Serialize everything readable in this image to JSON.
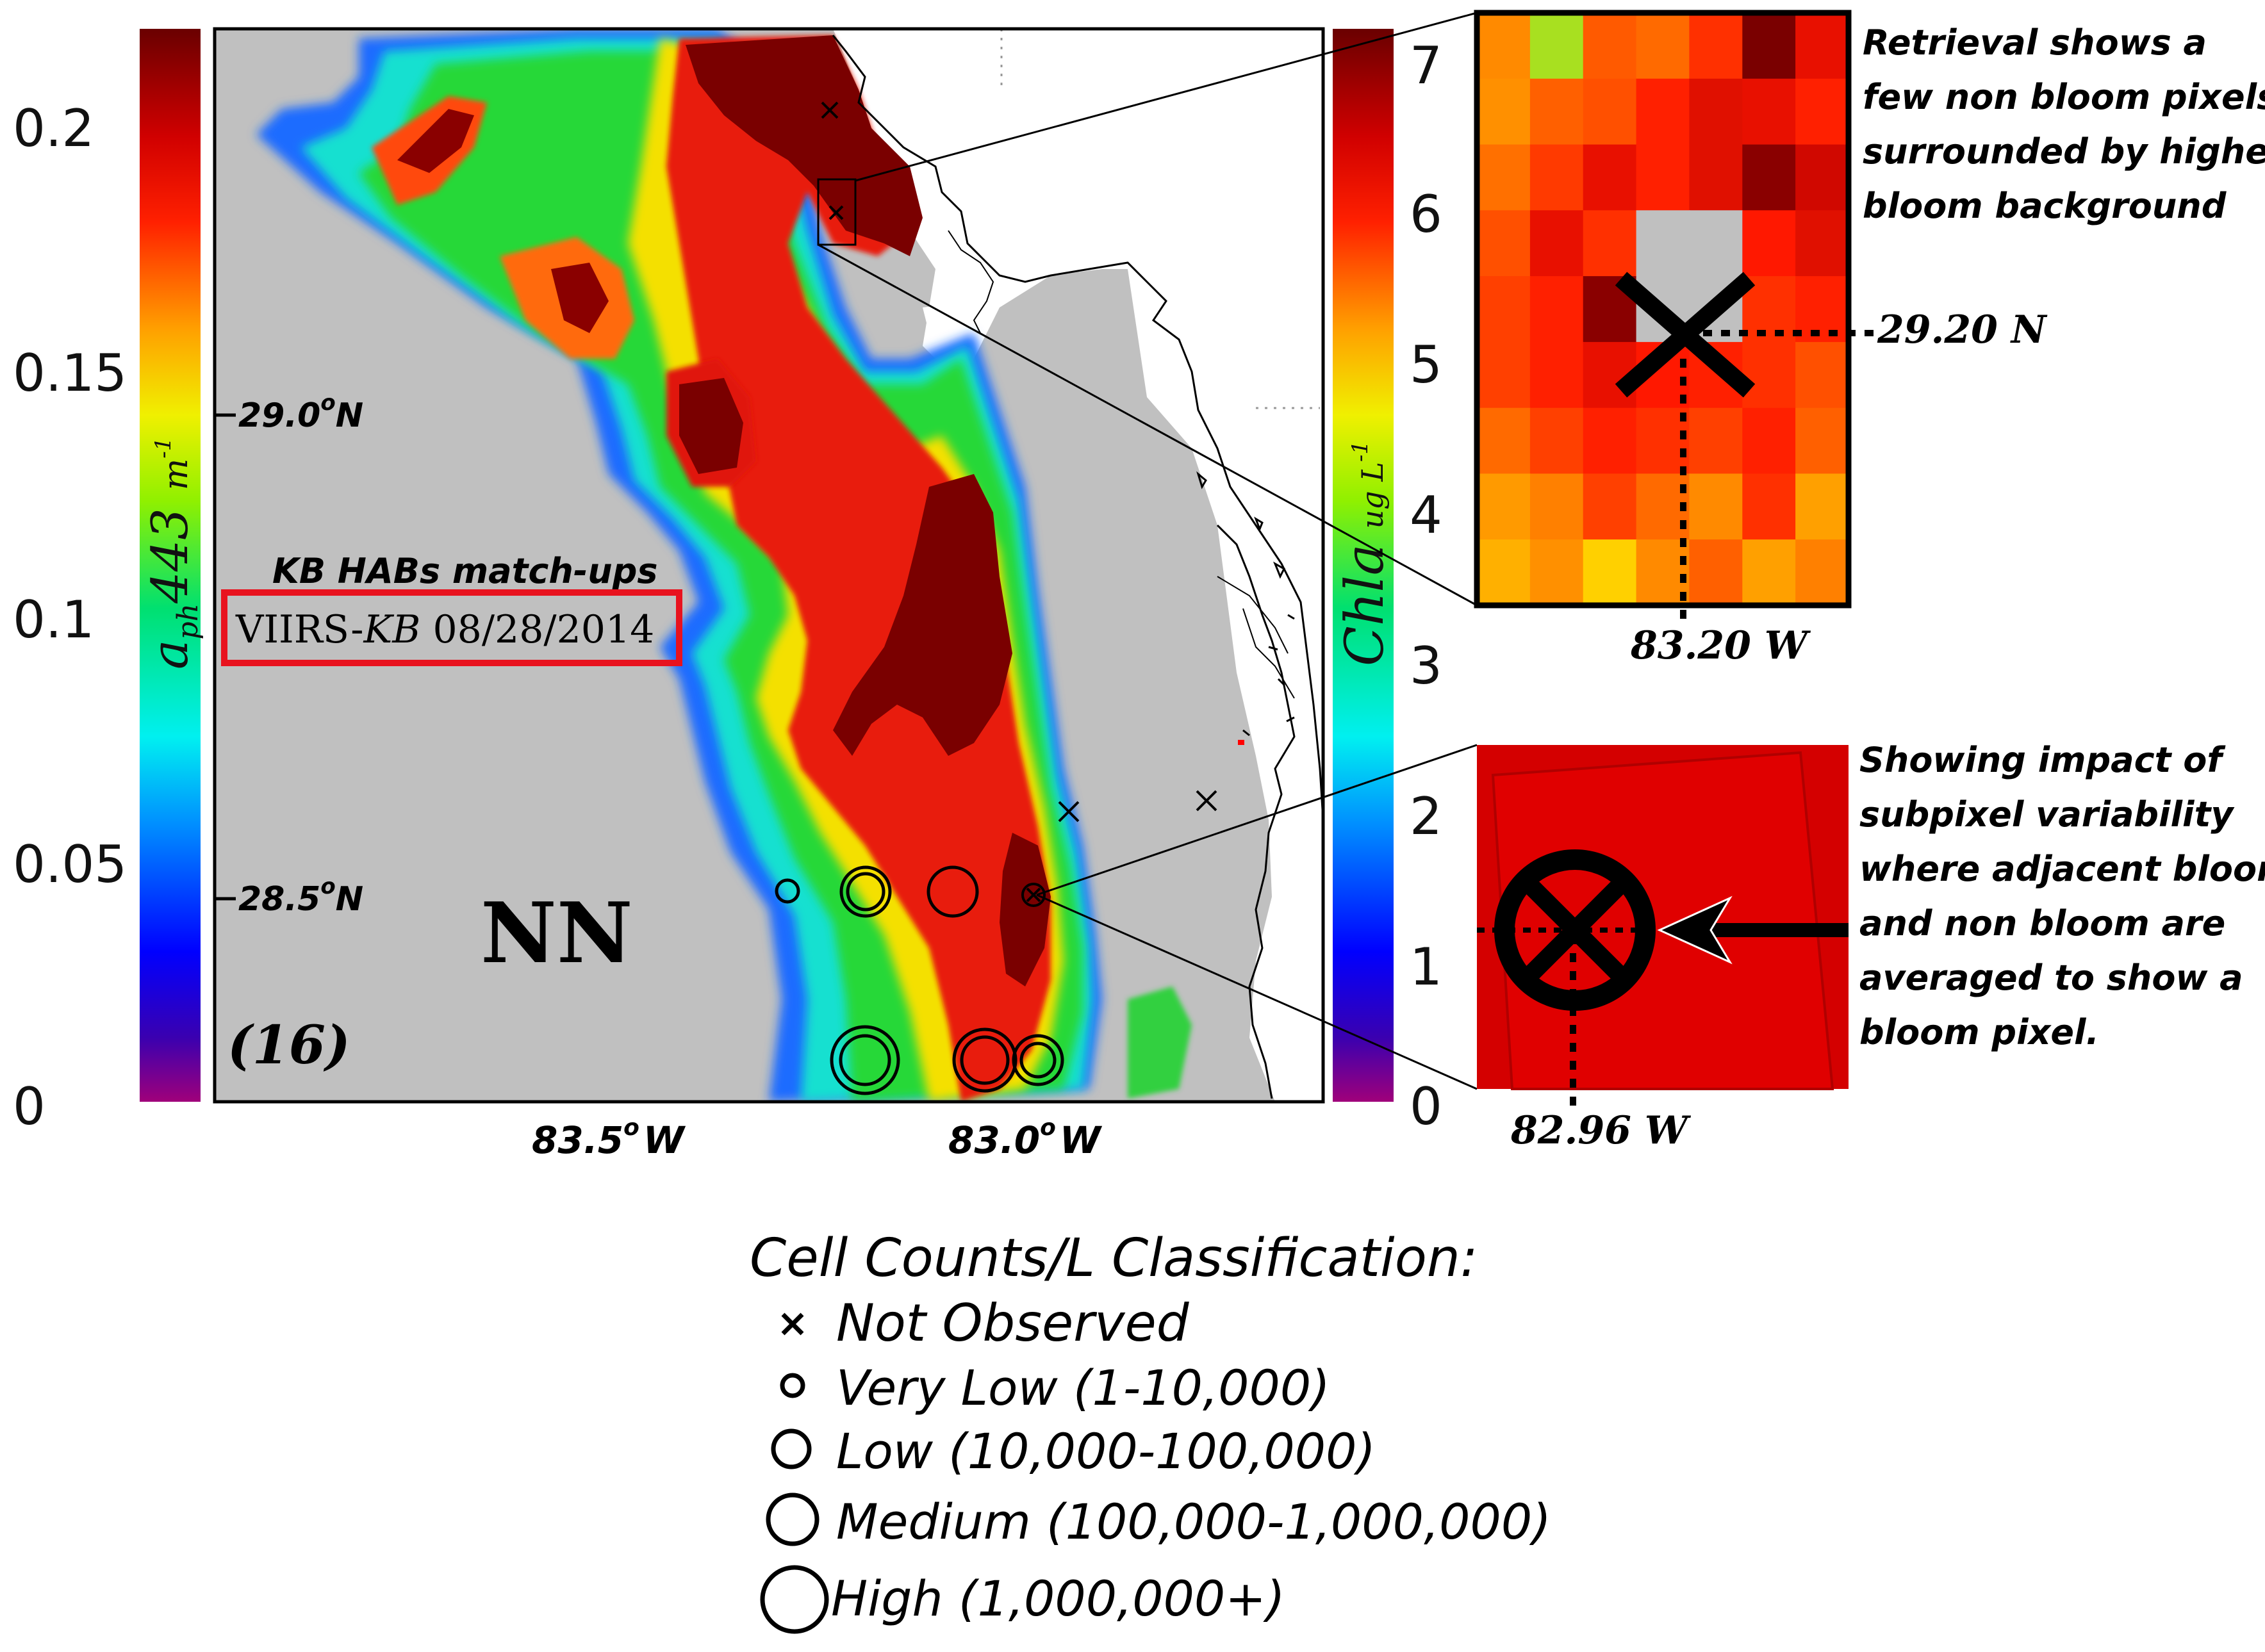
{
  "left_colorbar": {
    "label": "aph443 m-1",
    "label_main": "a",
    "label_sub": "ph",
    "label_num": "443",
    "label_unit": "m",
    "label_exp": "-1",
    "ticks": [
      "0.2",
      "0.15",
      "0.1",
      "0.05",
      "0"
    ],
    "range": [
      0,
      0.22
    ]
  },
  "right_colorbar": {
    "label": "Chla ug L-1",
    "label_main": "Chla",
    "label_unit": "ug L",
    "label_exp": "-1",
    "ticks": [
      "7",
      "6",
      "5",
      "4",
      "3",
      "2",
      "1",
      "0"
    ],
    "range": [
      0,
      7.4
    ]
  },
  "map": {
    "lat_labels": [
      {
        "text": "29.0",
        "deg": "o",
        "hemi": "N"
      },
      {
        "text": "28.5",
        "deg": "o",
        "hemi": "N"
      }
    ],
    "lon_labels": [
      {
        "text": "83.5",
        "deg": "o",
        "hemi": "W"
      },
      {
        "text": "83.0",
        "deg": "o",
        "hemi": "W"
      }
    ],
    "caption_line1": "KB HABs match-ups",
    "caption_box_prefix": "VIIRS-",
    "caption_box_italic": "KB",
    "caption_box_date": " 08/28/2014",
    "panel_code": "NN",
    "panel_number": "(16)",
    "colors": {
      "land": "#c0c0c0",
      "bloom_dark": "#7a0000",
      "caption_border": "#e8121e"
    }
  },
  "inset_top": {
    "lat_label": "29.20 N",
    "lon_label": "83.20 W",
    "annotation": [
      "Retrieval shows a",
      "few non bloom pixels",
      "surrounded by higher",
      "bloom background"
    ]
  },
  "inset_bottom": {
    "lon_label": "82.96 W",
    "annotation": [
      "Showing impact of",
      "subpixel variability",
      "where adjacent bloom",
      "and non bloom are",
      "averaged to show a",
      "bloom pixel."
    ]
  },
  "legend": {
    "title": "Cell Counts/L Classification:",
    "items": [
      {
        "symbol": "x",
        "label": "Not Observed"
      },
      {
        "symbol": "circle-very-low",
        "label": "Very Low (1-10,000)"
      },
      {
        "symbol": "circle-low",
        "label": "Low (10,000-100,000)"
      },
      {
        "symbol": "circle-medium",
        "label": "Medium (100,000-1,000,000)"
      },
      {
        "symbol": "circle-high",
        "label": "High (1,000,000+)"
      }
    ]
  }
}
